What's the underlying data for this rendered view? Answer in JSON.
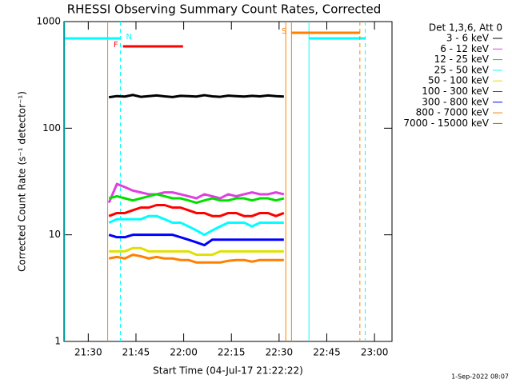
{
  "chart_data": {
    "type": "line",
    "title": "RHESSI Observing Summary Count Rates, Corrected",
    "x_label": "Start Time (04-Jul-17 21:22:22)",
    "y_label": "Corrected Count Rate (s⁻¹ detector⁻¹)",
    "legend_title": "Det 1,3,6, Att 0",
    "timestamp": "1-Sep-2022 08:07",
    "log_y": true,
    "xlim": [
      1282.37,
      1385.5
    ],
    "xticks": [
      {
        "value": 1290,
        "label": "21:30"
      },
      {
        "value": 1305,
        "label": "21:45"
      },
      {
        "value": 1320,
        "label": "22:00"
      },
      {
        "value": 1335,
        "label": "22:15"
      },
      {
        "value": 1350,
        "label": "22:30"
      },
      {
        "value": 1365,
        "label": "22:45"
      },
      {
        "value": 1380,
        "label": "23:00"
      }
    ],
    "ylim": [
      1,
      1000
    ],
    "yticks": [
      1,
      10,
      100,
      1000
    ],
    "x": [
      1296.5,
      1299,
      1301.5,
      1304,
      1306.5,
      1309,
      1311.5,
      1314,
      1316.5,
      1319,
      1321.5,
      1324,
      1326.5,
      1329,
      1331.5,
      1334,
      1336.5,
      1339,
      1341.5,
      1344,
      1346.5,
      1349,
      1351.5
    ],
    "series": [
      {
        "name": "3 - 6 keV",
        "color": "#000000",
        "values": [
          195,
          200,
          198,
          205,
          197,
          200,
          203,
          199,
          196,
          201,
          200,
          198,
          204,
          199,
          197,
          202,
          200,
          198,
          201,
          199,
          203,
          200,
          198
        ]
      },
      {
        "name": "6 - 12 keV",
        "color": "#e040e0",
        "values": [
          20,
          30,
          28,
          26,
          25,
          24,
          24,
          25,
          25,
          24,
          23,
          22,
          24,
          23,
          22,
          24,
          23,
          24,
          25,
          24,
          24,
          25,
          24
        ]
      },
      {
        "name": "12 - 25 keV",
        "color": "#00e000",
        "values": [
          22,
          23,
          22,
          21,
          22,
          23,
          24,
          23,
          22,
          22,
          21,
          20,
          21,
          22,
          21,
          21,
          22,
          22,
          21,
          22,
          22,
          21,
          22
        ]
      },
      {
        "name": "25 - 50 keV",
        "color": "#00ffff",
        "values": [
          13,
          14,
          14,
          14,
          14,
          15,
          15,
          14,
          13,
          13,
          12,
          11,
          10,
          11,
          12,
          13,
          13,
          13,
          12,
          13,
          13,
          13,
          13
        ]
      },
      {
        "name": "50 - 100 keV",
        "color": "#e0e000",
        "values": [
          7,
          7,
          7,
          7.5,
          7.5,
          7,
          7,
          7,
          7,
          7,
          7,
          6.5,
          6.5,
          6.5,
          7,
          7,
          7,
          7,
          7,
          7,
          7,
          7,
          7
        ]
      },
      {
        "name": "100 - 300 keV",
        "color": "#ff0000",
        "values": [
          15,
          16,
          16,
          17,
          18,
          18,
          19,
          19,
          18,
          18,
          17,
          16,
          16,
          15,
          15,
          16,
          16,
          15,
          15,
          16,
          16,
          15,
          16
        ]
      },
      {
        "name": "300 - 800 keV",
        "color": "#0000ff",
        "values": [
          10,
          9.5,
          9.5,
          10,
          10,
          10,
          10,
          10,
          10,
          9.5,
          9,
          8.5,
          8,
          9,
          9,
          9,
          9,
          9,
          9,
          9,
          9,
          9,
          9
        ]
      },
      {
        "name": "800 - 7000 keV",
        "color": "#ff8000",
        "values": [
          6,
          6.2,
          6,
          6.5,
          6.3,
          6,
          6.2,
          6,
          6,
          5.8,
          5.8,
          5.5,
          5.5,
          5.5,
          5.5,
          5.7,
          5.8,
          5.8,
          5.6,
          5.8,
          5.8,
          5.8,
          5.8
        ]
      },
      {
        "name": "7000 - 15000 keV",
        "color": "#808000",
        "values": [
          null,
          null,
          null,
          null,
          null,
          null,
          null,
          null,
          null,
          null,
          null,
          null,
          null,
          null,
          null,
          null,
          null,
          null,
          null,
          null,
          null,
          null,
          null
        ]
      }
    ],
    "flags": [
      {
        "label": "N",
        "color": "#00ffff",
        "vlines": true,
        "intervals": [
          [
            1282.6,
            1300.1
          ],
          [
            1359.4,
            1377.1
          ]
        ]
      },
      {
        "label": "F",
        "color": "#ff0000",
        "vlines": false,
        "intervals": [
          [
            1300.9,
            1319.8
          ]
        ]
      },
      {
        "label": "S",
        "color": "#ff8000",
        "vlines": true,
        "intervals": [
          [
            1353.9,
            1375.4
          ]
        ]
      }
    ],
    "markers": [
      {
        "x": 1296.1,
        "color": "#ff8000"
      },
      {
        "x": 1352.1,
        "color": "#ff8000"
      }
    ]
  }
}
